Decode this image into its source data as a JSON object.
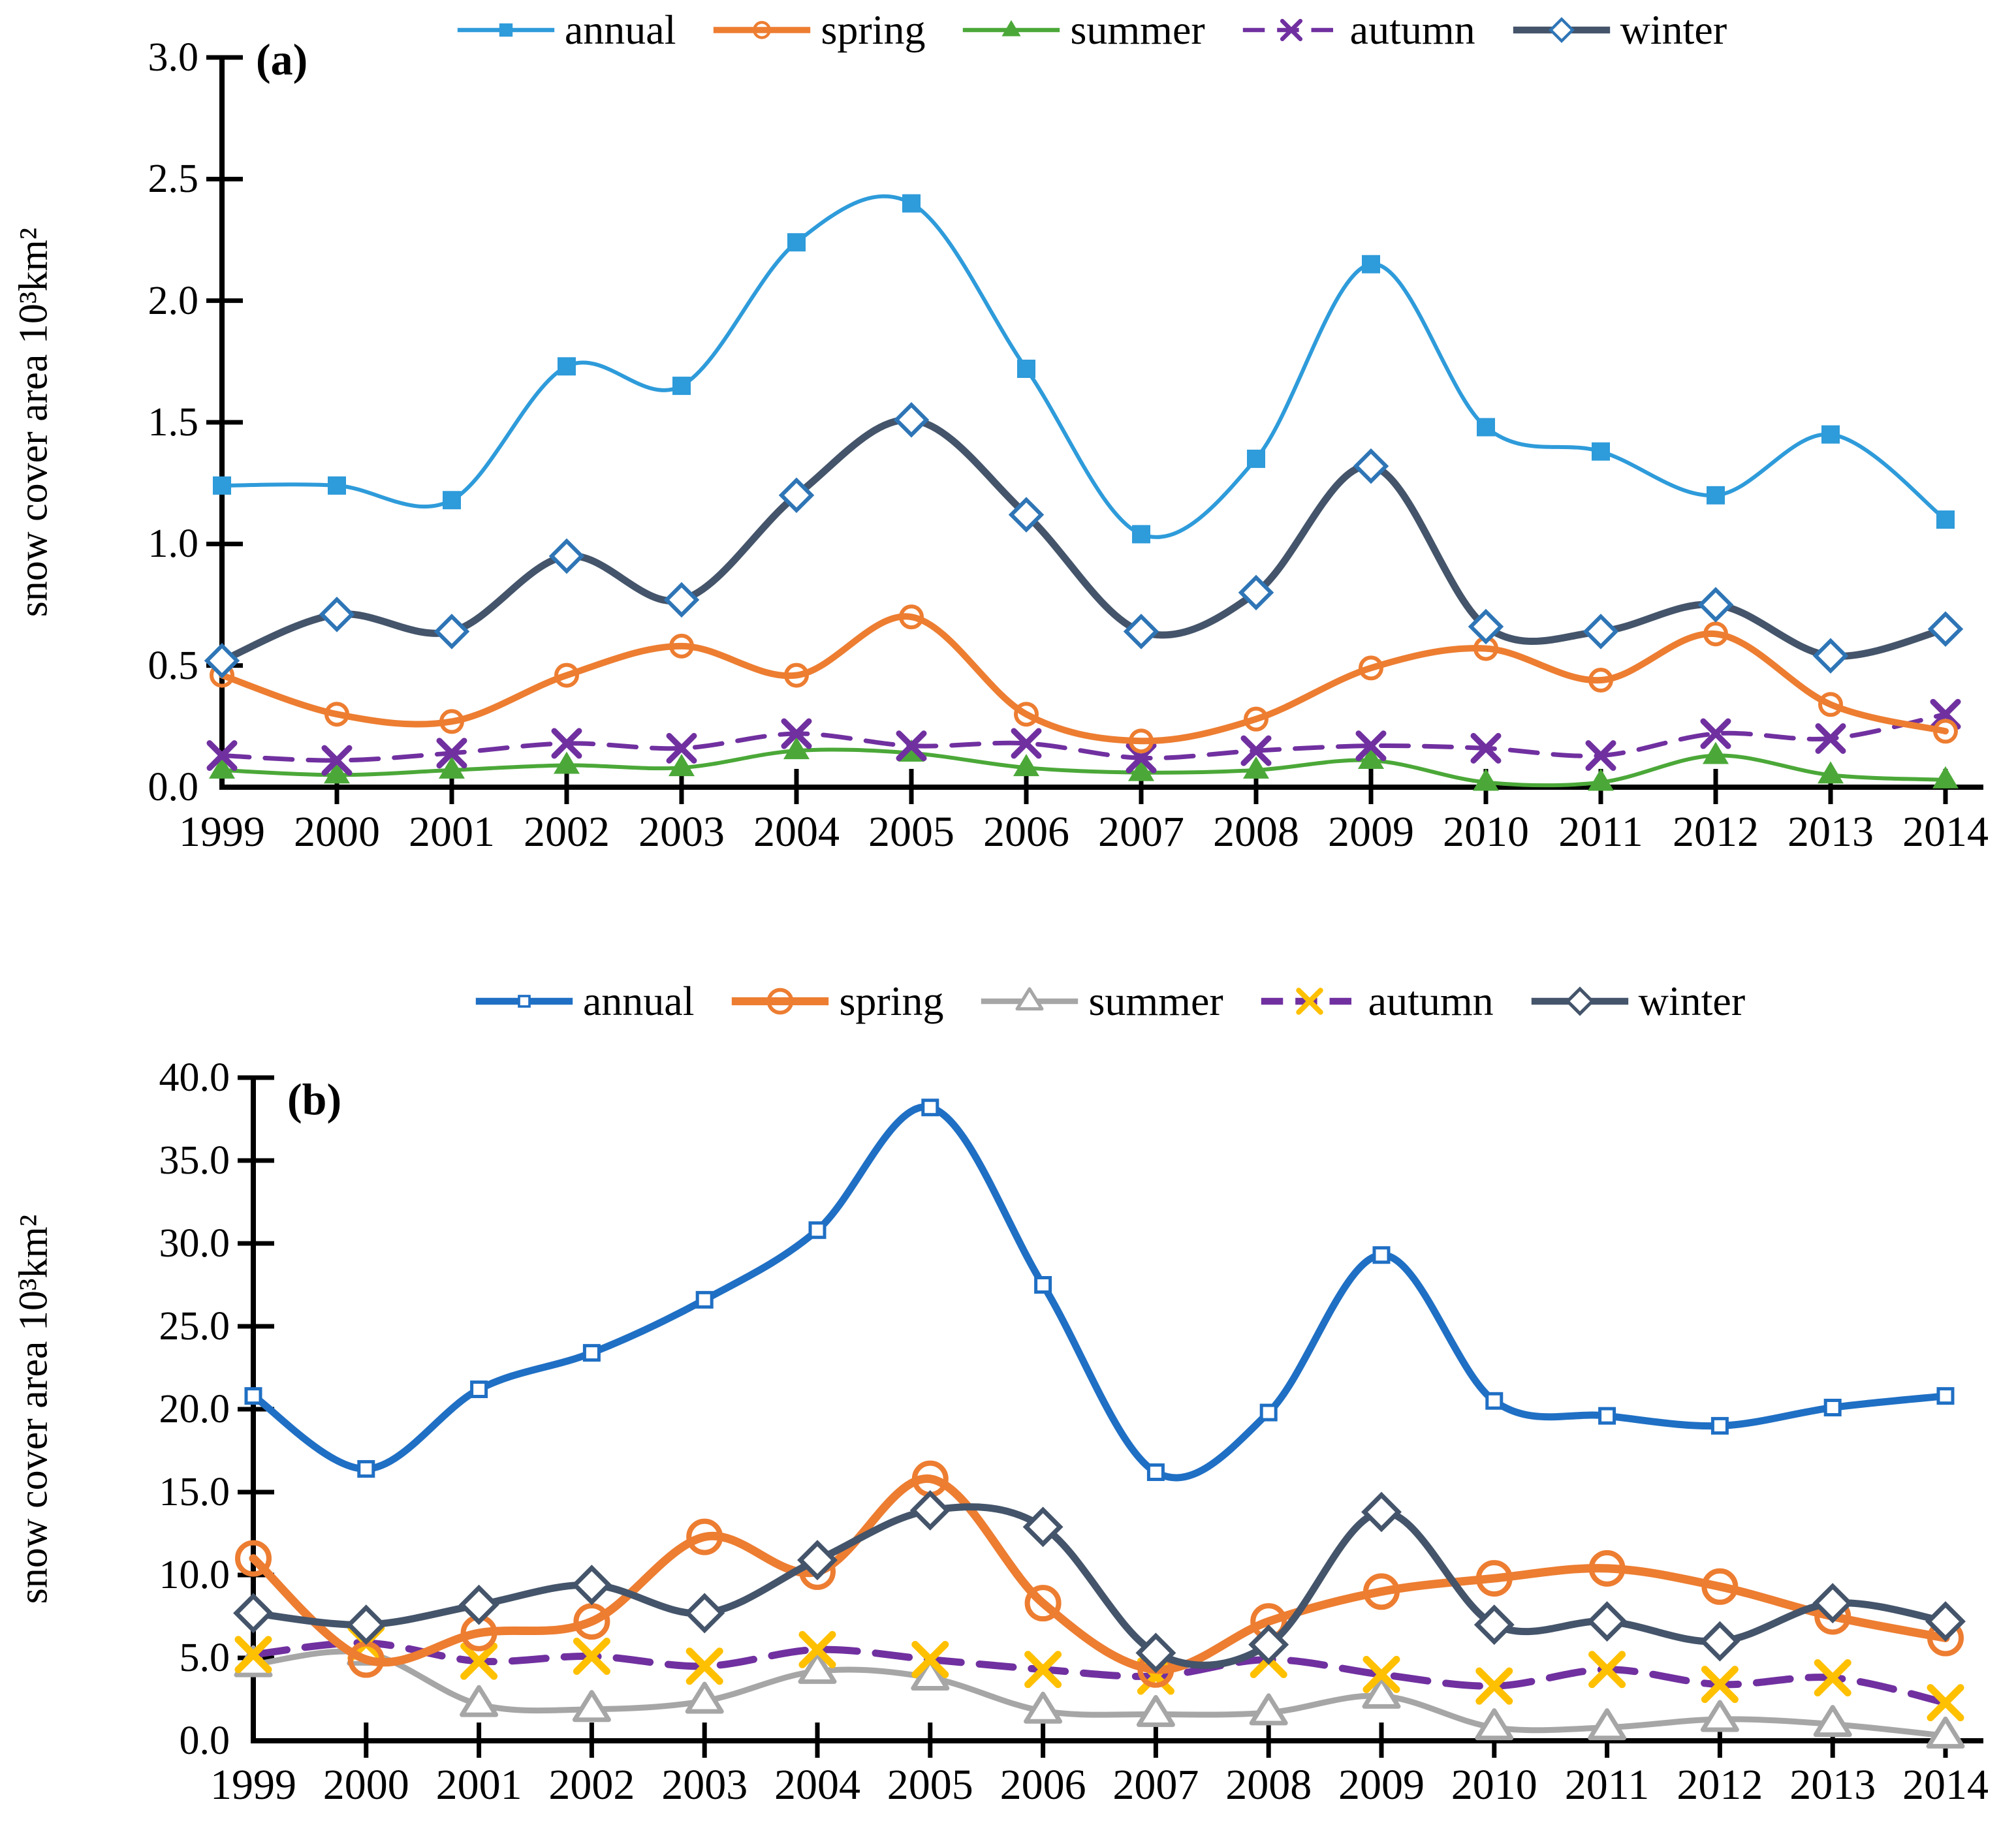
{
  "figure": {
    "background": "#ffffff",
    "text_color": "#000000"
  },
  "chart_data": [
    {
      "id": "a",
      "type": "line",
      "panel_label": "(a)",
      "ylabel": "snow cover area 10³km²",
      "x_categories": [
        "1999",
        "2000",
        "2001",
        "2002",
        "2003",
        "2004",
        "2005",
        "2006",
        "2007",
        "2008",
        "2009",
        "2010",
        "2011",
        "2012",
        "2013",
        "2014"
      ],
      "ylim": [
        0.0,
        3.0
      ],
      "y_tick_labels": [
        "3.0",
        "2.5",
        "2.0",
        "1.5",
        "1.0",
        "0.5",
        "0.0"
      ],
      "legend_position": "top-center",
      "grid": false,
      "smooth_lines": true,
      "series": [
        {
          "name": "annual",
          "color": "#2E9BDA",
          "marker": "filled-square",
          "values": [
            1.24,
            1.24,
            1.18,
            1.73,
            1.65,
            2.24,
            2.4,
            1.72,
            1.04,
            1.35,
            2.15,
            1.48,
            1.38,
            1.2,
            1.45,
            1.1
          ]
        },
        {
          "name": "spring",
          "color": "#ED7D31",
          "marker": "open-circle",
          "values": [
            0.46,
            0.3,
            0.27,
            0.46,
            0.58,
            0.46,
            0.7,
            0.3,
            0.19,
            0.28,
            0.49,
            0.57,
            0.44,
            0.63,
            0.34,
            0.23
          ]
        },
        {
          "name": "summer",
          "color": "#4BA838",
          "marker": "filled-triangle",
          "values": [
            0.07,
            0.05,
            0.07,
            0.09,
            0.08,
            0.15,
            0.14,
            0.08,
            0.06,
            0.07,
            0.11,
            0.02,
            0.02,
            0.13,
            0.05,
            0.03
          ]
        },
        {
          "name": "autumn",
          "color": "#7030A0",
          "marker": "x",
          "marker_color": "#7030A0",
          "line_style": "dashed",
          "values": [
            0.13,
            0.11,
            0.14,
            0.18,
            0.16,
            0.22,
            0.17,
            0.18,
            0.12,
            0.15,
            0.17,
            0.16,
            0.13,
            0.22,
            0.2,
            0.3
          ]
        },
        {
          "name": "winter",
          "color": "#44546A",
          "marker": "open-diamond",
          "marker_color": "#2E75B6",
          "values": [
            0.52,
            0.71,
            0.64,
            0.95,
            0.77,
            1.2,
            1.51,
            1.12,
            0.64,
            0.8,
            1.32,
            0.66,
            0.64,
            0.75,
            0.54,
            0.65
          ]
        }
      ]
    },
    {
      "id": "b",
      "type": "line",
      "panel_label": "(b)",
      "ylabel": "snow cover area 10³km²",
      "x_categories": [
        "1999",
        "2000",
        "2001",
        "2002",
        "2003",
        "2004",
        "2005",
        "2006",
        "2007",
        "2008",
        "2009",
        "2010",
        "2011",
        "2012",
        "2013",
        "2014"
      ],
      "ylim": [
        0.0,
        40.0
      ],
      "y_tick_labels": [
        "40.0",
        "35.0",
        "30.0",
        "25.0",
        "20.0",
        "15.0",
        "10.0",
        "5.0",
        "0.0"
      ],
      "legend_position": "top-center",
      "grid": false,
      "smooth_lines": true,
      "series": [
        {
          "name": "annual",
          "color": "#1F6FC4",
          "marker": "open-square",
          "values": [
            20.8,
            16.4,
            21.2,
            23.4,
            26.6,
            30.8,
            38.2,
            27.5,
            16.2,
            19.8,
            29.3,
            20.5,
            19.6,
            19.0,
            20.1,
            20.8
          ]
        },
        {
          "name": "spring",
          "color": "#ED7D31",
          "marker": "open-circle",
          "values": [
            11.0,
            4.9,
            6.5,
            7.2,
            12.3,
            10.2,
            15.8,
            8.3,
            4.3,
            7.2,
            9.0,
            9.8,
            10.4,
            9.3,
            7.5,
            6.2
          ]
        },
        {
          "name": "summer",
          "color": "#A6A6A6",
          "marker": "open-triangle",
          "values": [
            4.6,
            5.3,
            2.2,
            1.9,
            2.4,
            4.2,
            3.8,
            1.8,
            1.6,
            1.7,
            2.7,
            0.8,
            0.8,
            1.3,
            1.0,
            0.3
          ]
        },
        {
          "name": "autumn",
          "color": "#7030A0",
          "marker": "x",
          "marker_color": "#FFC000",
          "line_style": "dashed",
          "values": [
            5.2,
            5.9,
            4.8,
            5.1,
            4.5,
            5.5,
            4.9,
            4.3,
            3.9,
            4.9,
            4.0,
            3.3,
            4.3,
            3.4,
            3.8,
            2.3
          ]
        },
        {
          "name": "winter",
          "color": "#44546A",
          "marker": "open-diamond",
          "marker_color": "#44546A",
          "values": [
            7.7,
            7.0,
            8.2,
            9.4,
            7.7,
            10.9,
            13.9,
            12.9,
            5.3,
            5.8,
            13.8,
            7.0,
            7.2,
            6.0,
            8.3,
            7.2
          ]
        }
      ]
    }
  ]
}
